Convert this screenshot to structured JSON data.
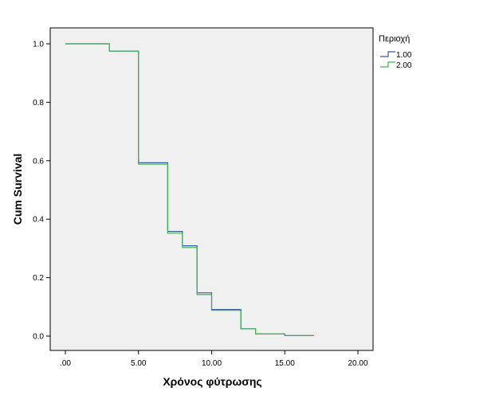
{
  "chart_data": {
    "type": "line",
    "subtype": "survival-step",
    "xlabel": "Χρόνος φύτρωσης",
    "ylabel": "Cum Survival",
    "xlim": [
      0,
      20
    ],
    "ylim": [
      0,
      1
    ],
    "x_ticks": [
      0,
      5,
      10,
      15,
      20
    ],
    "x_tick_labels": [
      ".00",
      "5.00",
      "10.00",
      "15.00",
      "20.00"
    ],
    "y_ticks": [
      0,
      0.2,
      0.4,
      0.6,
      0.8,
      1.0
    ],
    "y_tick_labels": [
      "0.0",
      "0.2",
      "0.4",
      "0.6",
      "0.8",
      "1.0"
    ],
    "grid": false,
    "plot_background": "#f0f0f0",
    "legend": {
      "title": "Περιοχή",
      "placement": "right"
    },
    "series": [
      {
        "name": "1.00",
        "color": "#3d56a6",
        "points": [
          [
            0,
            1.0
          ],
          [
            3,
            1.0
          ],
          [
            3,
            0.975
          ],
          [
            5,
            0.975
          ],
          [
            5,
            0.593
          ],
          [
            7,
            0.593
          ],
          [
            7,
            0.358
          ],
          [
            8,
            0.358
          ],
          [
            8,
            0.309
          ],
          [
            9,
            0.309
          ],
          [
            9,
            0.148
          ],
          [
            10,
            0.148
          ],
          [
            10,
            0.091
          ],
          [
            12,
            0.091
          ],
          [
            12,
            0.025
          ],
          [
            13,
            0.025
          ],
          [
            13,
            0.008
          ],
          [
            15,
            0.008
          ],
          [
            15,
            0.002
          ],
          [
            17,
            0.002
          ]
        ]
      },
      {
        "name": "2.00",
        "color": "#3fb34f",
        "points": [
          [
            0,
            1.0
          ],
          [
            3,
            1.0
          ],
          [
            3,
            0.975
          ],
          [
            5,
            0.975
          ],
          [
            5,
            0.588
          ],
          [
            7,
            0.588
          ],
          [
            7,
            0.352
          ],
          [
            8,
            0.352
          ],
          [
            8,
            0.303
          ],
          [
            9,
            0.303
          ],
          [
            9,
            0.142
          ],
          [
            10,
            0.142
          ],
          [
            10,
            0.088
          ],
          [
            12,
            0.088
          ],
          [
            12,
            0.025
          ],
          [
            13,
            0.025
          ],
          [
            13,
            0.008
          ],
          [
            15,
            0.008
          ],
          [
            15,
            0.002
          ],
          [
            17,
            0.002
          ]
        ]
      }
    ]
  }
}
